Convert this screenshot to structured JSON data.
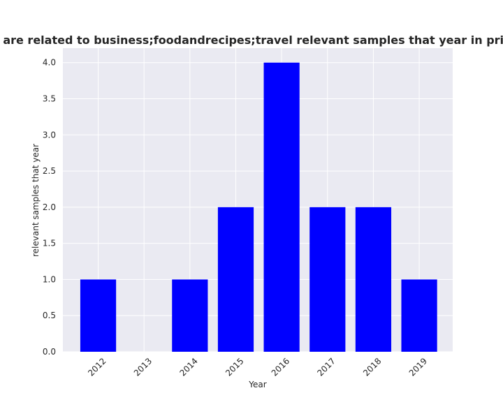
{
  "chart_data": {
    "type": "bar",
    "title": "Categories are related to business;foodandrecipes;travel relevant samples that year in privacy policies",
    "xlabel": "Year",
    "ylabel": "relevant samples that year",
    "categories": [
      "2012",
      "2013",
      "2014",
      "2015",
      "2016",
      "2017",
      "2018",
      "2019"
    ],
    "values": [
      1,
      0,
      1,
      2,
      4,
      2,
      2,
      1
    ],
    "ylim": [
      0,
      4.2
    ],
    "yticks": [
      "0.0",
      "0.5",
      "1.0",
      "1.5",
      "2.0",
      "2.5",
      "3.0",
      "3.5",
      "4.0"
    ],
    "grid": true,
    "legend": "none",
    "colors": {
      "bar": "#0000ff",
      "plot_background": "#eaeaf2",
      "grid": "#ffffff"
    }
  }
}
